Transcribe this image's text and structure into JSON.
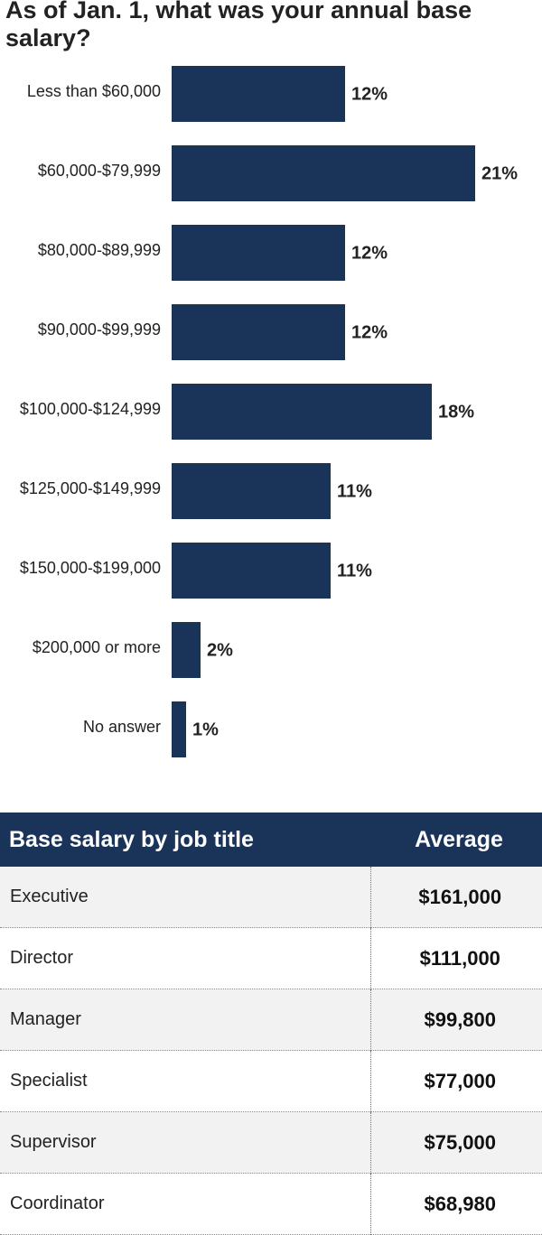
{
  "chart_data": {
    "type": "bar",
    "orientation": "horizontal",
    "title": "As of Jan. 1, what was your annual base salary?",
    "categories": [
      "Less than $60,000",
      "$60,000-$79,999",
      "$80,000-$89,999",
      "$90,000-$99,999",
      "$100,000-$124,999",
      "$125,000-$149,999",
      "$150,000-$199,000",
      "$200,000 or more",
      "No answer"
    ],
    "values": [
      12,
      21,
      12,
      12,
      18,
      11,
      11,
      2,
      1
    ],
    "value_labels": [
      "12%",
      "21%",
      "12%",
      "12%",
      "18%",
      "11%",
      "11%",
      "2%",
      "1%"
    ],
    "unit": "%",
    "bar_color": "#1a3358"
  },
  "table": {
    "headers": [
      "Base salary by job title",
      "Average"
    ],
    "rows": [
      {
        "title": "Executive",
        "average": "$161,000"
      },
      {
        "title": "Director",
        "average": "$111,000"
      },
      {
        "title": "Manager",
        "average": "$99,800"
      },
      {
        "title": "Specialist",
        "average": "$77,000"
      },
      {
        "title": "Supervisor",
        "average": "$75,000"
      },
      {
        "title": "Coordinator",
        "average": "$68,980"
      }
    ],
    "header_color": "#1a3358"
  }
}
